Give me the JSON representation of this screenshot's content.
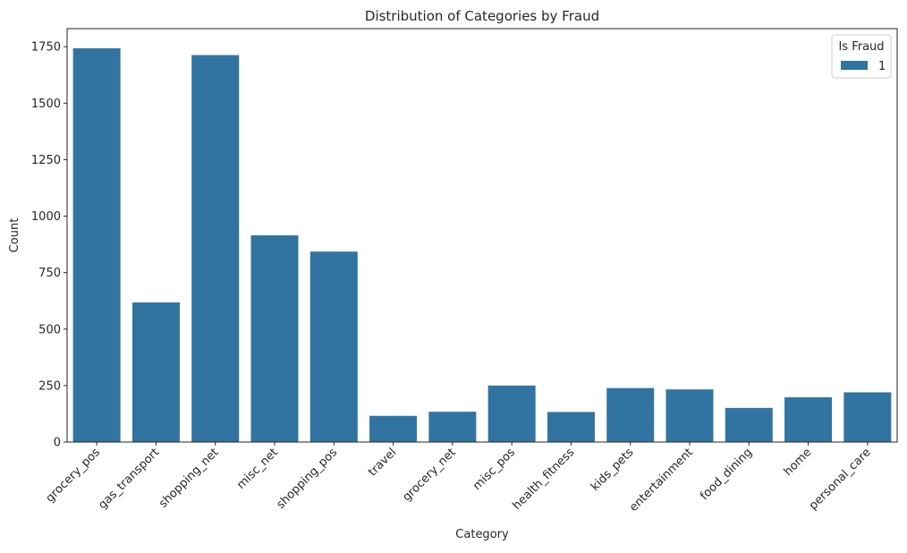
{
  "chart_data": {
    "type": "bar",
    "title": "Distribution of Categories by Fraud",
    "xlabel": "Category",
    "ylabel": "Count",
    "categories": [
      "grocery_pos",
      "gas_transport",
      "shopping_net",
      "misc_net",
      "shopping_pos",
      "travel",
      "grocery_net",
      "misc_pos",
      "health_fitness",
      "kids_pets",
      "entertainment",
      "food_dining",
      "home",
      "personal_care"
    ],
    "series": [
      {
        "name": "1",
        "values": [
          1743,
          618,
          1713,
          915,
          843,
          116,
          134,
          250,
          133,
          239,
          233,
          151,
          198,
          220
        ]
      }
    ],
    "ylim": [
      0,
      1830
    ],
    "yticks": [
      0,
      250,
      500,
      750,
      1000,
      1250,
      1500,
      1750
    ],
    "grid": false,
    "legend": {
      "title": "Is Fraud",
      "placement": "top-right"
    },
    "colors": {
      "bar": "#3274a1"
    }
  }
}
